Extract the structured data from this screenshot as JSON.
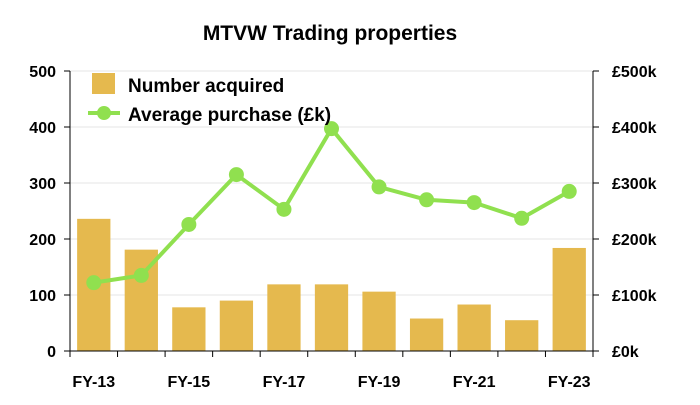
{
  "chart_data": {
    "type": "bar",
    "title": "MTVW Trading properties",
    "categories": [
      "FY-13",
      "FY-14",
      "FY-15",
      "FY-16",
      "FY-17",
      "FY-18",
      "FY-19",
      "FY-20",
      "FY-21",
      "FY-22",
      "FY-23"
    ],
    "x_tick_labels": [
      "FY-13",
      "",
      "FY-15",
      "",
      "FY-17",
      "",
      "FY-19",
      "",
      "FY-21",
      "",
      "FY-23"
    ],
    "series": [
      {
        "name": "Number acquired",
        "type": "bar",
        "axis": "left",
        "color": "#E5B94E",
        "values": [
          236,
          181,
          78,
          90,
          119,
          119,
          106,
          58,
          83,
          55,
          184
        ]
      },
      {
        "name": "Average purchase (£k)",
        "type": "line",
        "axis": "right",
        "color": "#90E04F",
        "values": [
          122,
          135,
          226,
          315,
          253,
          397,
          293,
          270,
          265,
          237,
          285
        ]
      }
    ],
    "ylim_left": [
      0,
      500
    ],
    "yticks_left": [
      "0",
      "100",
      "200",
      "300",
      "400",
      "500"
    ],
    "ylim_right": [
      0,
      500
    ],
    "yticks_right": [
      "£0k",
      "£100k",
      "£200k",
      "£300k",
      "£400k",
      "£500k"
    ],
    "grid": "horizontal",
    "legend_position": "top-left"
  }
}
